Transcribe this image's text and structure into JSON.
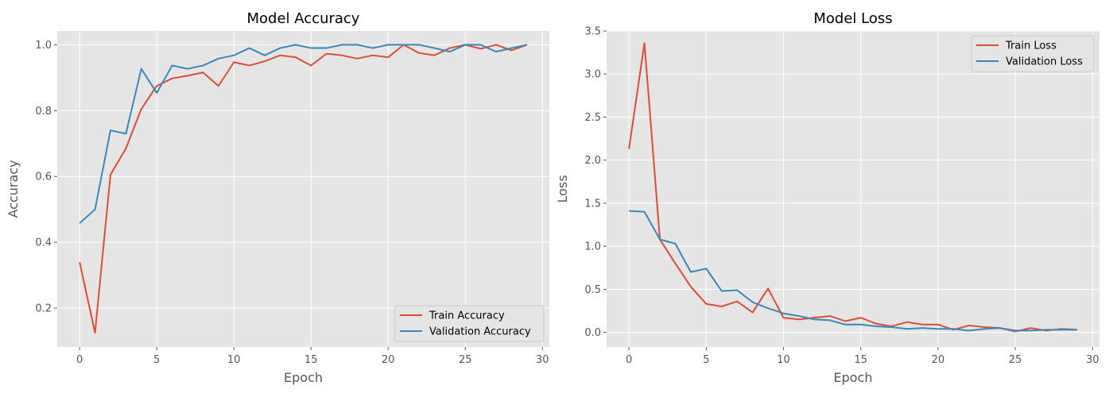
{
  "chart_data": [
    {
      "type": "line",
      "title": "Model Accuracy",
      "xlabel": "Epoch",
      "ylabel": "Accuracy",
      "xlim": [
        -1.45,
        30.45
      ],
      "ylim": [
        0.082,
        1.042
      ],
      "x_ticks": [
        0,
        5,
        10,
        15,
        20,
        25,
        30
      ],
      "y_ticks": [
        0.2,
        0.4,
        0.6,
        0.8,
        1.0
      ],
      "y_tick_labels": [
        "0.2",
        "0.4",
        "0.6",
        "0.8",
        "1.0"
      ],
      "grid": true,
      "legend_position": "bottom-right",
      "x": [
        0,
        1,
        2,
        3,
        4,
        5,
        6,
        7,
        8,
        9,
        10,
        11,
        12,
        13,
        14,
        15,
        16,
        17,
        18,
        19,
        20,
        21,
        22,
        23,
        24,
        25,
        26,
        27,
        28,
        29
      ],
      "series": [
        {
          "name": "Train Accuracy",
          "color": "#E24A33",
          "values": [
            0.34,
            0.125,
            0.605,
            0.685,
            0.805,
            0.875,
            0.898,
            0.906,
            0.916,
            0.875,
            0.947,
            0.937,
            0.95,
            0.968,
            0.962,
            0.937,
            0.973,
            0.968,
            0.958,
            0.968,
            0.962,
            1.0,
            0.975,
            0.968,
            0.99,
            1.0,
            0.988,
            1.0,
            0.983,
            1.0
          ]
        },
        {
          "name": "Validation Accuracy",
          "color": "#348ABD",
          "values": [
            0.458,
            0.5,
            0.74,
            0.73,
            0.927,
            0.854,
            0.937,
            0.927,
            0.937,
            0.958,
            0.968,
            0.99,
            0.968,
            0.99,
            1.0,
            0.99,
            0.99,
            1.0,
            1.0,
            0.99,
            1.0,
            1.0,
            1.0,
            0.99,
            0.979,
            1.0,
            1.0,
            0.979,
            0.99,
            1.0
          ]
        }
      ]
    },
    {
      "type": "line",
      "title": "Model Loss",
      "xlabel": "Epoch",
      "ylabel": "Loss",
      "xlim": [
        -1.45,
        30.45
      ],
      "ylim": [
        -0.17,
        3.5
      ],
      "x_ticks": [
        0,
        5,
        10,
        15,
        20,
        25,
        30
      ],
      "y_ticks": [
        0.0,
        0.5,
        1.0,
        1.5,
        2.0,
        2.5,
        3.0,
        3.5
      ],
      "y_tick_labels": [
        "0.0",
        "0.5",
        "1.0",
        "1.5",
        "2.0",
        "2.5",
        "3.0",
        "3.5"
      ],
      "grid": true,
      "legend_position": "top-right",
      "x": [
        0,
        1,
        2,
        3,
        4,
        5,
        6,
        7,
        8,
        9,
        10,
        11,
        12,
        13,
        14,
        15,
        16,
        17,
        18,
        19,
        20,
        21,
        22,
        23,
        24,
        25,
        26,
        27,
        28,
        29
      ],
      "series": [
        {
          "name": "Train Loss",
          "color": "#E24A33",
          "values": [
            2.13,
            3.36,
            1.08,
            0.8,
            0.53,
            0.33,
            0.3,
            0.36,
            0.23,
            0.51,
            0.17,
            0.15,
            0.17,
            0.19,
            0.13,
            0.17,
            0.1,
            0.07,
            0.12,
            0.09,
            0.09,
            0.03,
            0.08,
            0.06,
            0.05,
            0.01,
            0.05,
            0.02,
            0.04,
            0.03
          ]
        },
        {
          "name": "Validation Loss",
          "color": "#348ABD",
          "values": [
            1.41,
            1.4,
            1.08,
            1.03,
            0.7,
            0.74,
            0.48,
            0.49,
            0.35,
            0.28,
            0.22,
            0.19,
            0.15,
            0.14,
            0.09,
            0.09,
            0.07,
            0.06,
            0.04,
            0.05,
            0.04,
            0.04,
            0.02,
            0.04,
            0.05,
            0.02,
            0.02,
            0.03,
            0.03,
            0.03
          ]
        }
      ]
    }
  ]
}
